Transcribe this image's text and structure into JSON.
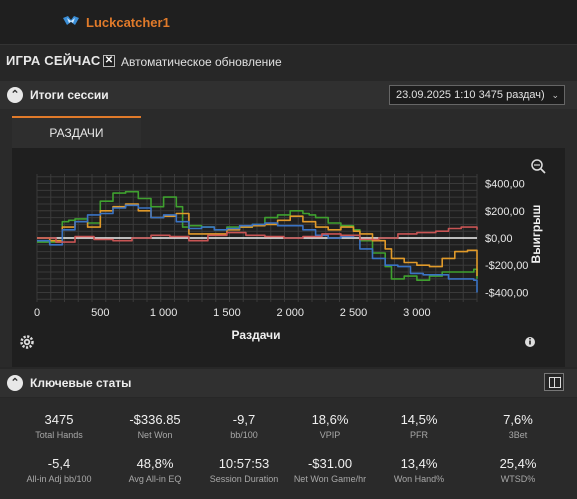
{
  "header": {
    "username": "Luckcatcher1"
  },
  "now_playing": {
    "title": "ИГРА СЕЙЧАС",
    "auto_update_label": "Автоматическое обновление",
    "auto_update_checked": true
  },
  "session": {
    "title": "Итоги сессии",
    "selected_session": "23.09.2025 1:10 3475 раздач)",
    "tab_label": "РАЗДАЧИ"
  },
  "chart_data": {
    "type": "line",
    "xlabel": "Раздачи",
    "ylabel": "Выигрыш",
    "x_ticks": [
      "0",
      "500",
      "1 000",
      "1 500",
      "2 000",
      "2 500",
      "3 000"
    ],
    "x_tick_values": [
      0,
      500,
      1000,
      1500,
      2000,
      2500,
      3000
    ],
    "y_ticks": [
      "$400,00",
      "$200,00",
      "$0,00",
      "-$200,00",
      "-$400,00"
    ],
    "y_tick_values": [
      400,
      200,
      0,
      -200,
      -400
    ],
    "xlim": [
      0,
      3475
    ],
    "ylim": [
      -470,
      470
    ],
    "grid": true,
    "series": [
      {
        "color": "#3fa02f",
        "x": [
          0,
          100,
          200,
          250,
          300,
          400,
          500,
          600,
          700,
          800,
          900,
          1000,
          1100,
          1150,
          1200,
          1300,
          1400,
          1500,
          1600,
          1700,
          1800,
          1900,
          2000,
          2100,
          2150,
          2200,
          2300,
          2400,
          2500,
          2550,
          2650,
          2750,
          2800,
          2900,
          3000,
          3100,
          3200,
          3300,
          3400,
          3450,
          3475
        ],
        "y": [
          -30,
          -30,
          120,
          130,
          140,
          110,
          270,
          330,
          340,
          290,
          230,
          300,
          230,
          80,
          90,
          80,
          60,
          80,
          80,
          100,
          150,
          170,
          200,
          180,
          170,
          150,
          110,
          90,
          60,
          -20,
          -110,
          -210,
          -300,
          -280,
          -310,
          -280,
          -250,
          -250,
          -250,
          -230,
          -300
        ]
      },
      {
        "color": "#e09a2a",
        "x": [
          0,
          100,
          200,
          300,
          400,
          500,
          600,
          700,
          800,
          900,
          1000,
          1100,
          1200,
          1300,
          1400,
          1500,
          1600,
          1700,
          1800,
          1900,
          2000,
          2100,
          2200,
          2300,
          2400,
          2500,
          2550,
          2650,
          2750,
          2800,
          2900,
          3000,
          3100,
          3200,
          3300,
          3400,
          3475
        ],
        "y": [
          0,
          -20,
          80,
          120,
          80,
          200,
          230,
          250,
          200,
          150,
          160,
          180,
          30,
          30,
          30,
          60,
          80,
          90,
          100,
          130,
          160,
          120,
          80,
          60,
          80,
          50,
          30,
          -20,
          -80,
          -150,
          -180,
          -200,
          -210,
          -150,
          -100,
          -90,
          -280
        ]
      },
      {
        "color": "#3a73c4",
        "x": [
          0,
          100,
          200,
          300,
          400,
          500,
          600,
          700,
          800,
          900,
          1000,
          1100,
          1200,
          1300,
          1400,
          1500,
          1600,
          1700,
          1800,
          1900,
          2000,
          2100,
          2200,
          2300,
          2400,
          2500,
          2550,
          2650,
          2750,
          2850,
          2950,
          3050,
          3150,
          3250,
          3350,
          3450,
          3475
        ],
        "y": [
          -20,
          -50,
          60,
          120,
          170,
          180,
          220,
          240,
          220,
          150,
          170,
          120,
          70,
          80,
          60,
          70,
          90,
          100,
          110,
          90,
          90,
          60,
          20,
          0,
          10,
          20,
          -80,
          -150,
          -200,
          -210,
          -260,
          -270,
          -270,
          -300,
          -300,
          -310,
          -400
        ]
      },
      {
        "color": "#c85454",
        "x": [
          0,
          150,
          300,
          450,
          600,
          750,
          900,
          1050,
          1200,
          1350,
          1500,
          1650,
          1800,
          1950,
          2100,
          2250,
          2400,
          2550,
          2700,
          2850,
          3000,
          3150,
          3250,
          3350,
          3475
        ],
        "y": [
          0,
          -30,
          10,
          -10,
          -20,
          0,
          20,
          10,
          -20,
          20,
          40,
          20,
          10,
          0,
          10,
          30,
          20,
          -10,
          0,
          30,
          40,
          50,
          70,
          80,
          60
        ]
      }
    ]
  },
  "key_stats": {
    "title": "Ключевые статы",
    "items": [
      {
        "value": "3475",
        "label": "Total Hands"
      },
      {
        "value": "-$336.85",
        "label": "Net Won"
      },
      {
        "value": "-9,7",
        "label": "bb/100"
      },
      {
        "value": "18,6%",
        "label": "VPIP"
      },
      {
        "value": "14,5%",
        "label": "PFR"
      },
      {
        "value": "7,6%",
        "label": "3Bet"
      },
      {
        "value": "-5,4",
        "label": "All-in Adj bb/100"
      },
      {
        "value": "48,8%",
        "label": "Avg All-in EQ"
      },
      {
        "value": "10:57:53",
        "label": "Session Duration"
      },
      {
        "value": "-$31.00",
        "label": "Net Won Game/hr"
      },
      {
        "value": "13,4%",
        "label": "Won Hand%"
      },
      {
        "value": "25,4%",
        "label": "WTSD%"
      }
    ]
  }
}
